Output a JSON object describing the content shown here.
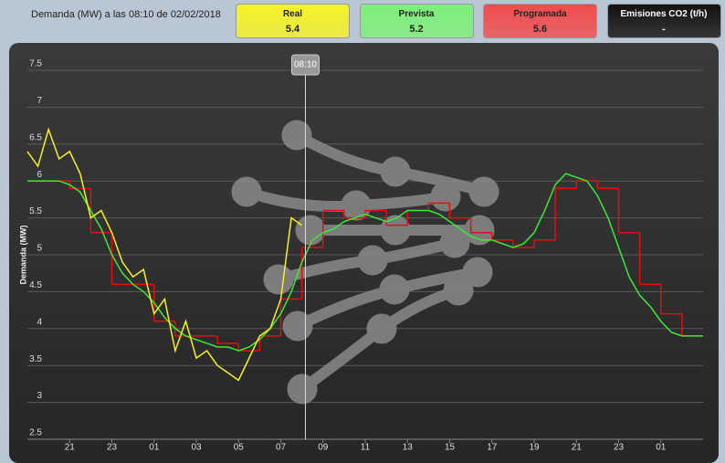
{
  "header": {
    "title": "Demanda (MW) a las 08:10 de 02/02/2018",
    "cards": [
      {
        "label": "Real",
        "value": 5.4,
        "color": "#f5f226"
      },
      {
        "label": "Prevista",
        "value": 5.2,
        "color": "#7ef07a"
      },
      {
        "label": "Programada",
        "value": 5.6,
        "color": "#f24c4c"
      },
      {
        "label": "Emisiones CO2 (t/h)",
        "value": "-",
        "color": "#111111"
      }
    ]
  },
  "chart_data": {
    "type": "line",
    "y_label": "Demanda (MW)",
    "cursor": {
      "x": 32.1667,
      "label": "08:10"
    },
    "xlim": [
      19,
      51
    ],
    "ylim": [
      2.5,
      7.5
    ],
    "yticks": [
      2.5,
      3,
      3.5,
      4,
      4.5,
      5,
      5.5,
      6,
      6.5,
      7,
      7.5
    ],
    "xticks": [
      21,
      23,
      {
        "value": 25,
        "label": "01"
      },
      {
        "value": 27,
        "label": "03"
      },
      {
        "value": 29,
        "label": "05"
      },
      {
        "value": 31,
        "label": "07"
      },
      {
        "value": 33,
        "label": "09"
      },
      {
        "value": 35,
        "label": "11"
      },
      {
        "value": 37,
        "label": "13"
      },
      {
        "value": 39,
        "label": "15"
      },
      {
        "value": 41,
        "label": "17"
      },
      {
        "value": 43,
        "label": "19"
      },
      {
        "value": 45,
        "label": "21"
      },
      {
        "value": 47,
        "label": "23"
      },
      {
        "value": 49,
        "label": "01"
      }
    ],
    "grid": true,
    "x": [
      19,
      19.5,
      20,
      20.5,
      21,
      21.5,
      22,
      22.5,
      23,
      23.5,
      24,
      24.5,
      25,
      25.5,
      26,
      26.5,
      27,
      27.5,
      28,
      28.5,
      29,
      29.5,
      30,
      30.5,
      31,
      31.5,
      32,
      32.5,
      33,
      33.5,
      34,
      34.5,
      35,
      35.5,
      36,
      36.5,
      37,
      37.5,
      38,
      38.5,
      39,
      39.5,
      40,
      40.5,
      41,
      41.5,
      42,
      42.5,
      43,
      43.5,
      44,
      44.5,
      45,
      45.5,
      46,
      46.5,
      47,
      47.5,
      48,
      48.5,
      49,
      49.5,
      50,
      50.5,
      51
    ],
    "series": [
      {
        "name": "Programada",
        "color": "#e01010",
        "step": true,
        "values": [
          6,
          6,
          6,
          6,
          5.9,
          5.9,
          5.3,
          5.3,
          4.6,
          4.6,
          4.6,
          4.6,
          4.1,
          4.1,
          3.9,
          3.9,
          3.9,
          3.9,
          3.8,
          3.8,
          3.7,
          3.7,
          3.9,
          3.9,
          4.4,
          4.4,
          5.1,
          5.1,
          5.6,
          5.6,
          5.5,
          5.5,
          5.6,
          5.6,
          5.4,
          5.4,
          5.6,
          5.6,
          5.7,
          5.7,
          5.5,
          5.5,
          5.3,
          5.3,
          5.2,
          5.2,
          5.1,
          5.1,
          5.2,
          5.2,
          5.9,
          5.9,
          6,
          6,
          5.9,
          5.9,
          5.3,
          5.3,
          4.6,
          4.6,
          4.2,
          4.2,
          3.9,
          3.9,
          3.9
        ]
      },
      {
        "name": "Prevista",
        "color": "#3ee83a",
        "step": false,
        "values": [
          6,
          6,
          6,
          6,
          5.95,
          5.85,
          5.6,
          5.35,
          5,
          4.75,
          4.6,
          4.5,
          4.35,
          4.15,
          4,
          3.9,
          3.85,
          3.8,
          3.75,
          3.75,
          3.7,
          3.75,
          3.85,
          4,
          4.2,
          4.5,
          4.9,
          5.2,
          5.3,
          5.35,
          5.45,
          5.5,
          5.55,
          5.5,
          5.45,
          5.5,
          5.6,
          5.6,
          5.6,
          5.55,
          5.45,
          5.35,
          5.25,
          5.2,
          5.2,
          5.15,
          5.1,
          5.15,
          5.3,
          5.6,
          5.95,
          6.1,
          6.05,
          6,
          5.8,
          5.5,
          5.1,
          4.7,
          4.45,
          4.3,
          4.1,
          3.95,
          3.9,
          3.9,
          3.9
        ]
      },
      {
        "name": "Real",
        "color": "#f5f020",
        "step": false,
        "values": [
          6.4,
          6.2,
          6.7,
          6.3,
          6.4,
          6.1,
          5.5,
          5.6,
          5.3,
          4.9,
          4.7,
          4.8,
          4.2,
          4.4,
          3.7,
          4.1,
          3.6,
          3.7,
          3.5,
          3.4,
          3.3,
          3.6,
          3.9,
          4.0,
          4.4,
          5.5,
          5.4,
          null,
          null,
          null,
          null,
          null,
          null,
          null,
          null,
          null,
          null,
          null,
          null,
          null,
          null,
          null,
          null,
          null,
          null,
          null,
          null,
          null,
          null,
          null,
          null,
          null,
          null,
          null,
          null,
          null,
          null,
          null,
          null,
          null,
          null,
          null,
          null,
          null,
          null
        ]
      }
    ]
  }
}
